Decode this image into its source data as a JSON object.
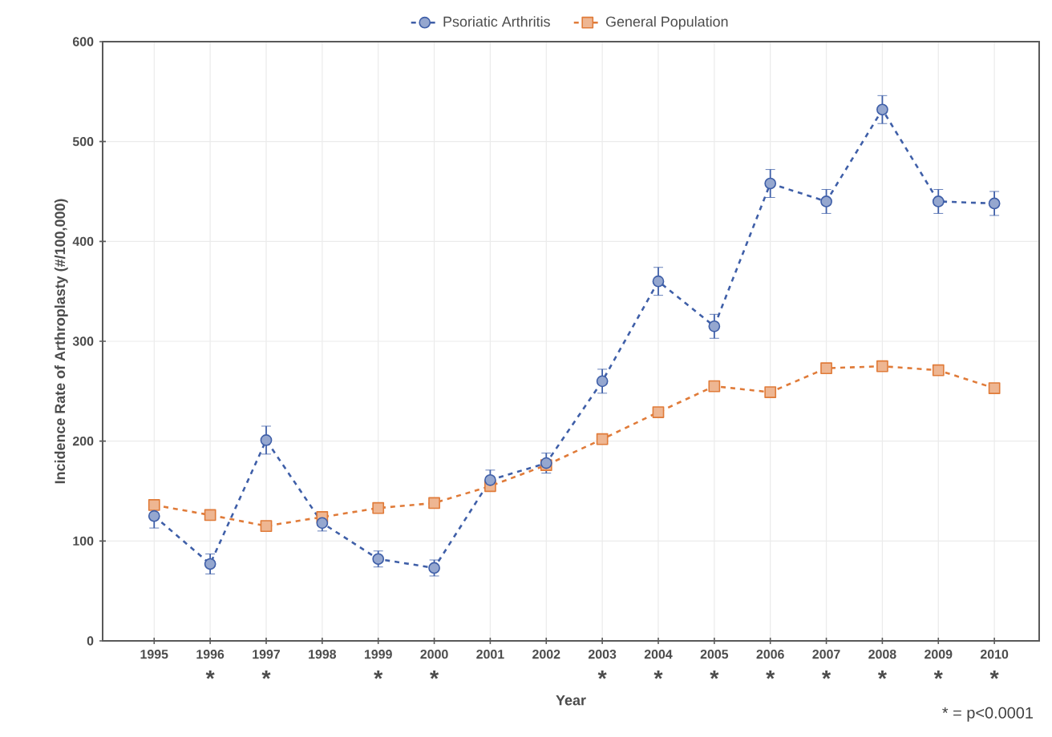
{
  "chart_data": {
    "type": "line",
    "xlabel": "Year",
    "ylabel": "Incidence Rate of Arthroplasty (#/100,000)",
    "categories": [
      "1995",
      "1996",
      "1997",
      "1998",
      "1999",
      "2000",
      "2001",
      "2002",
      "2003",
      "2004",
      "2005",
      "2006",
      "2007",
      "2008",
      "2009",
      "2010"
    ],
    "series": [
      {
        "name": "Psoriatic Arthritis",
        "color": "#3f5fa8",
        "marker": "circle",
        "values": [
          125,
          77,
          201,
          118,
          82,
          73,
          161,
          178,
          260,
          360,
          315,
          458,
          440,
          532,
          440,
          438
        ],
        "errors": [
          12,
          10,
          14,
          8,
          8,
          8,
          10,
          10,
          12,
          14,
          12,
          14,
          12,
          14,
          12,
          12
        ]
      },
      {
        "name": "General Population",
        "color": "#e07b39",
        "marker": "square",
        "values": [
          136,
          126,
          115,
          124,
          133,
          138,
          155,
          176,
          202,
          229,
          255,
          249,
          273,
          275,
          271,
          253
        ]
      }
    ],
    "ylim": [
      0,
      600
    ],
    "yticks": [
      0,
      100,
      200,
      300,
      400,
      500,
      600
    ],
    "grid": true,
    "legend": "top",
    "line_style": "dashed",
    "annotations": [
      "*",
      "*",
      "*",
      "*",
      "*",
      "*",
      "*",
      "*",
      "*",
      "*",
      "*",
      "*",
      "* = p<0.0001"
    ]
  }
}
